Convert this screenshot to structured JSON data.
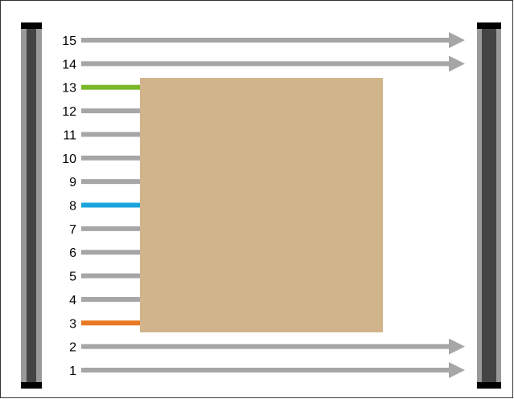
{
  "diagram": {
    "beam_count": 15,
    "beams": [
      {
        "label": "1",
        "state": "clear"
      },
      {
        "label": "2",
        "state": "clear"
      },
      {
        "label": "3",
        "state": "blocked-lowest"
      },
      {
        "label": "4",
        "state": "blocked"
      },
      {
        "label": "5",
        "state": "blocked"
      },
      {
        "label": "6",
        "state": "blocked"
      },
      {
        "label": "7",
        "state": "blocked"
      },
      {
        "label": "8",
        "state": "blocked-center"
      },
      {
        "label": "9",
        "state": "blocked"
      },
      {
        "label": "10",
        "state": "blocked"
      },
      {
        "label": "11",
        "state": "blocked"
      },
      {
        "label": "12",
        "state": "blocked"
      },
      {
        "label": "13",
        "state": "blocked-highest"
      },
      {
        "label": "14",
        "state": "clear"
      },
      {
        "label": "15",
        "state": "clear"
      }
    ],
    "colors": {
      "beam_clear": "#a6a6a6",
      "beam_blocked": "#a6a6a6",
      "beam_lowest": "#e87722",
      "beam_center": "#1aa3dd",
      "beam_highest": "#7ab82a",
      "object": "#d2b48c",
      "emitter_outer": "#999999",
      "emitter_inner": "#444444",
      "emitter_cap": "#000000",
      "frame_border": "#333333"
    },
    "emitter": {
      "name": "emitter-bar"
    },
    "receiver": {
      "name": "receiver-bar"
    },
    "object": {
      "name": "blocking-object"
    }
  }
}
